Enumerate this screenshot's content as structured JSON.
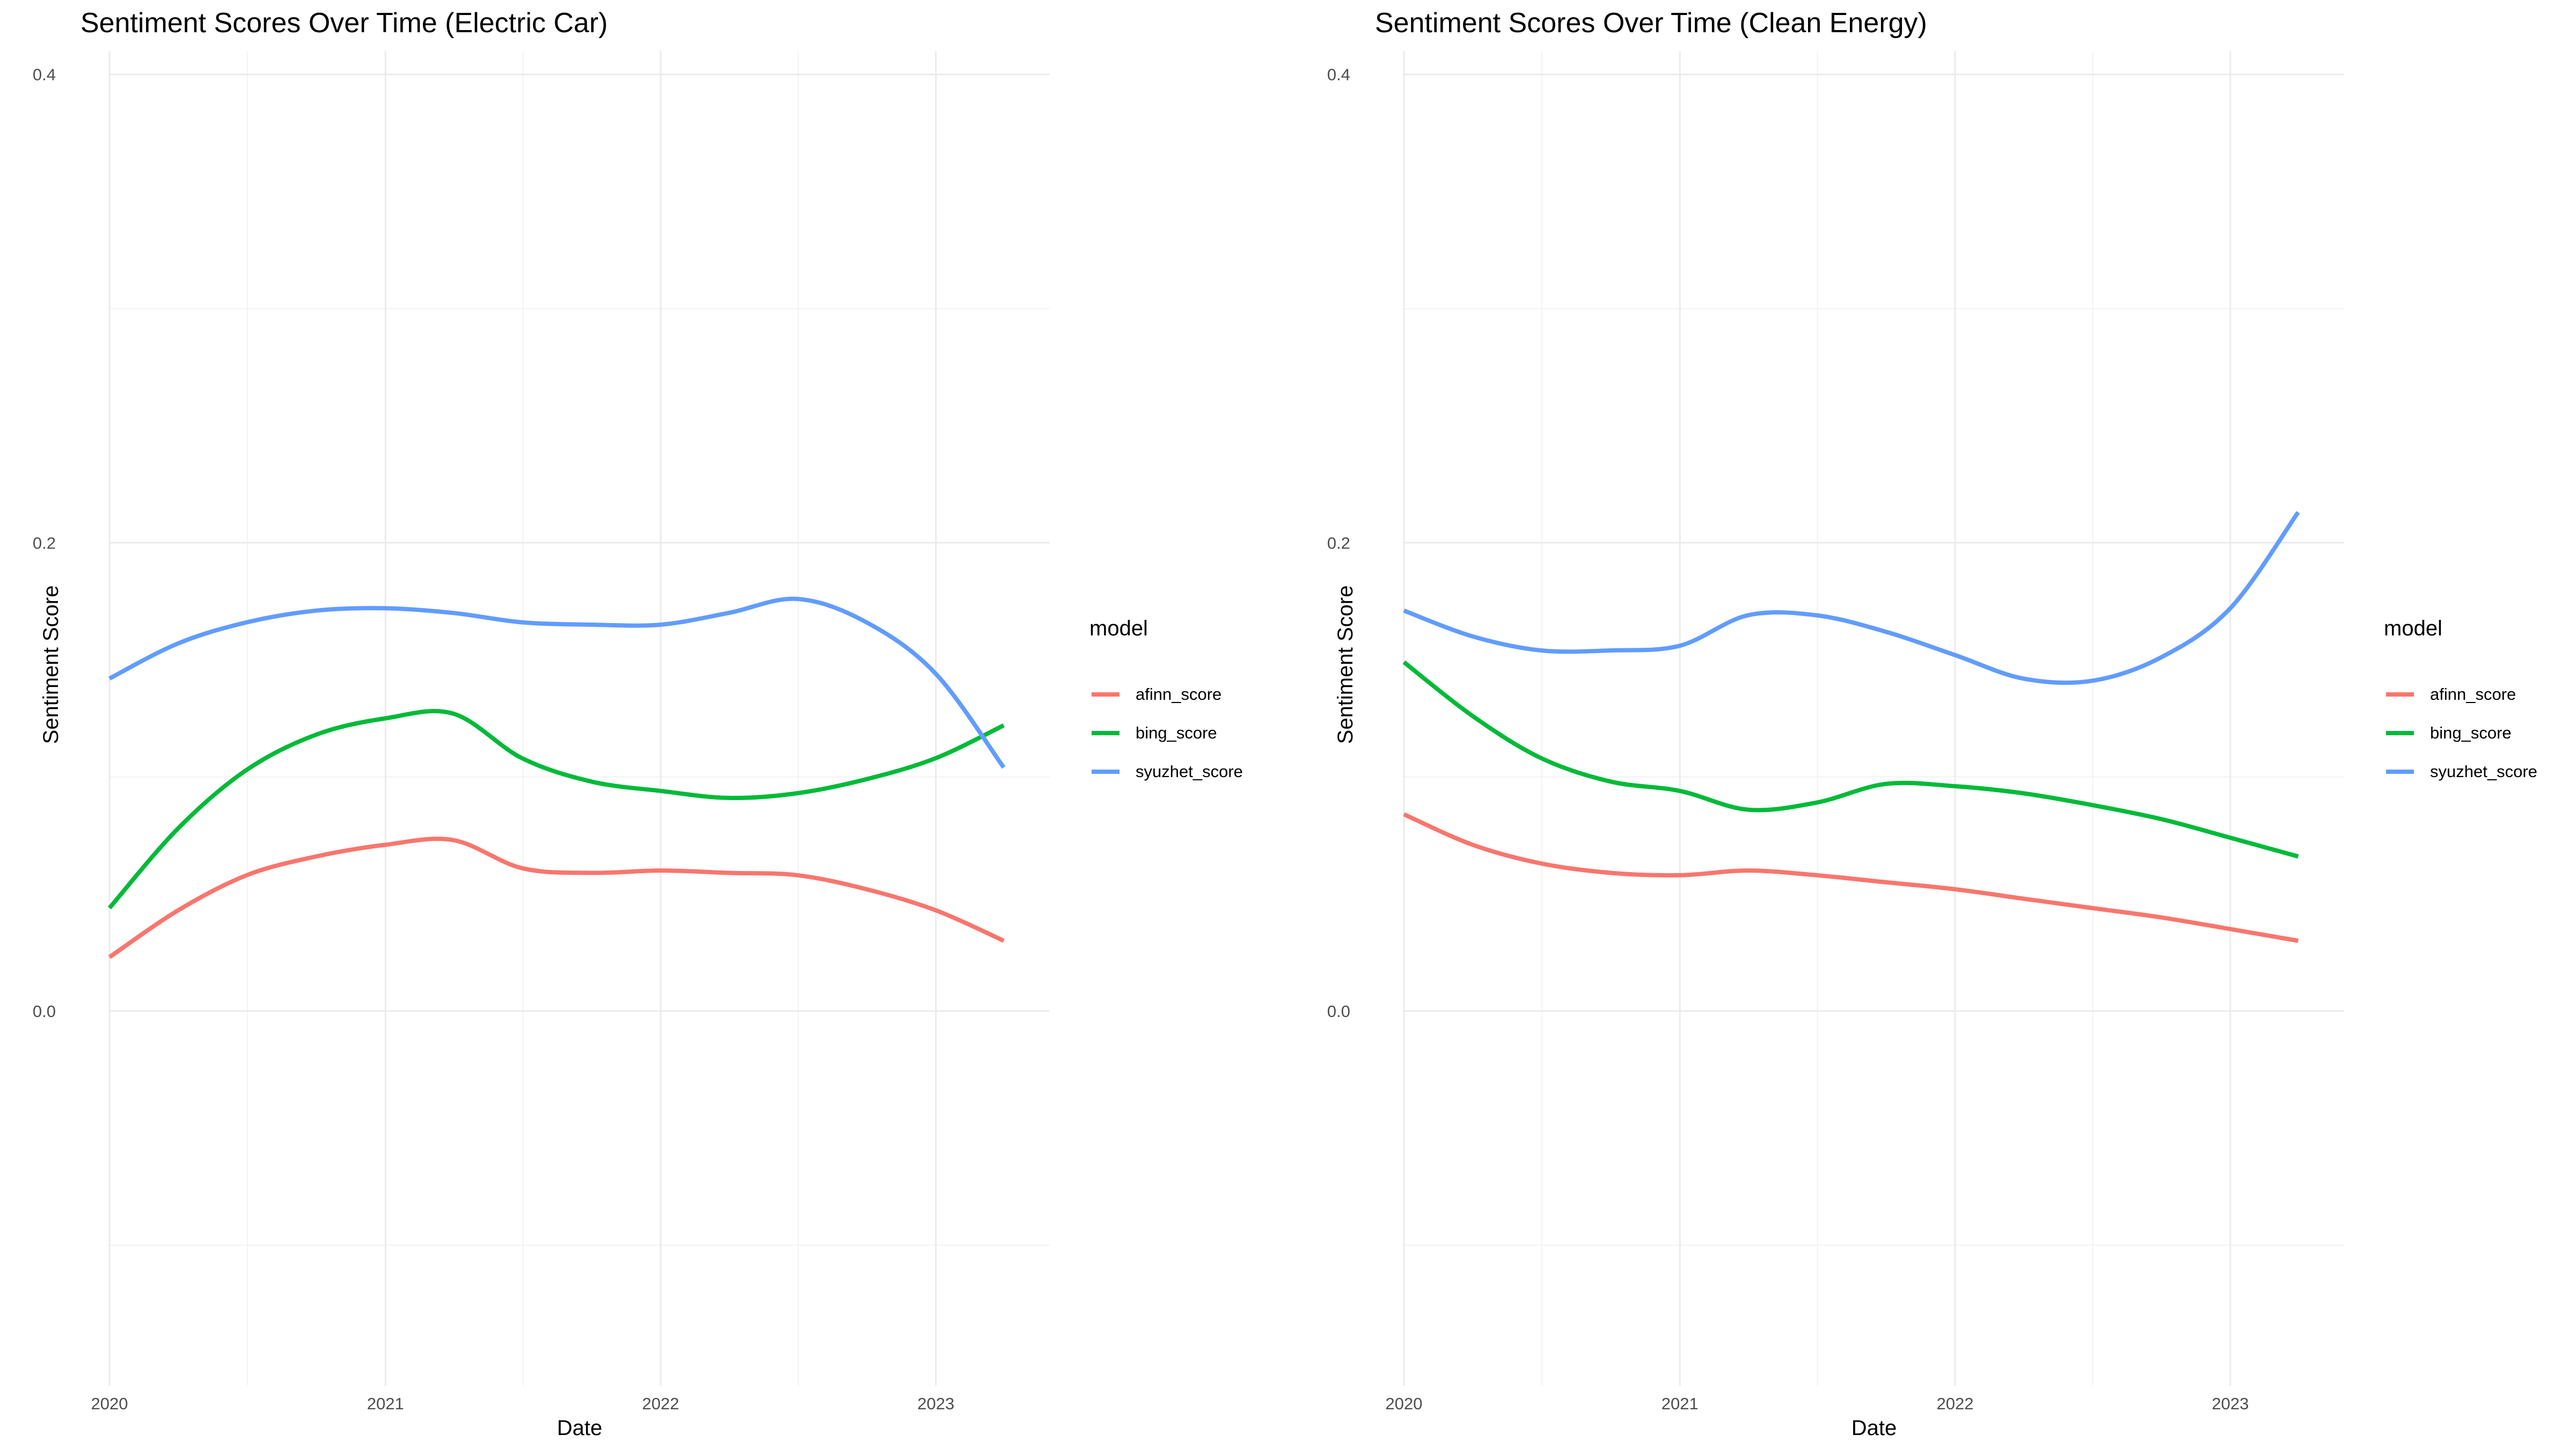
{
  "chart_data": [
    {
      "type": "line",
      "title": "Sentiment Scores Over Time (Electric Car)",
      "xlabel": "Date",
      "ylabel": "Sentiment Score",
      "x_type": "date",
      "xlim": [
        "2020-01-01",
        "2023-06-01"
      ],
      "ylim": [
        -0.16,
        0.41
      ],
      "x_ticks": [
        "2020-01-01",
        "2021-01-01",
        "2022-01-01",
        "2023-01-01"
      ],
      "x_tick_labels": [
        "2020",
        "2021",
        "2022",
        "2023"
      ],
      "y_ticks": [
        0.0,
        0.2,
        0.4
      ],
      "y_tick_labels": [
        "0.0",
        "0.2",
        "0.4"
      ],
      "legend_title": "model",
      "legend_position": "right",
      "grid": true,
      "x": [
        "2020-01-01",
        "2020-04-01",
        "2020-07-01",
        "2020-10-01",
        "2021-01-01",
        "2021-04-01",
        "2021-07-01",
        "2021-10-01",
        "2022-01-01",
        "2022-04-01",
        "2022-07-01",
        "2022-10-01",
        "2023-01-01",
        "2023-04-01"
      ],
      "series": [
        {
          "name": "afinn_score",
          "color": "#F8766D",
          "values": [
            0.023,
            0.043,
            0.058,
            0.066,
            0.071,
            0.073,
            0.061,
            0.059,
            0.06,
            0.059,
            0.058,
            0.052,
            0.043,
            0.03
          ]
        },
        {
          "name": "bing_score",
          "color": "#00BA38",
          "values": [
            0.044,
            0.078,
            0.103,
            0.118,
            0.125,
            0.127,
            0.108,
            0.098,
            0.094,
            0.091,
            0.093,
            0.099,
            0.108,
            0.122
          ]
        },
        {
          "name": "syuzhet_score",
          "color": "#619CFF",
          "values": [
            0.142,
            0.157,
            0.166,
            0.171,
            0.172,
            0.17,
            0.166,
            0.165,
            0.165,
            0.17,
            0.176,
            0.166,
            0.144,
            0.104
          ]
        }
      ]
    },
    {
      "type": "line",
      "title": "Sentiment Scores Over Time (Clean Energy)",
      "xlabel": "Date",
      "ylabel": "Sentiment Score",
      "x_type": "date",
      "xlim": [
        "2020-01-01",
        "2023-06-01"
      ],
      "ylim": [
        -0.16,
        0.41
      ],
      "x_ticks": [
        "2020-01-01",
        "2021-01-01",
        "2022-01-01",
        "2023-01-01"
      ],
      "x_tick_labels": [
        "2020",
        "2021",
        "2022",
        "2023"
      ],
      "y_ticks": [
        0.0,
        0.2,
        0.4
      ],
      "y_tick_labels": [
        "0.0",
        "0.2",
        "0.4"
      ],
      "legend_title": "model",
      "legend_position": "right",
      "grid": true,
      "x": [
        "2020-01-01",
        "2020-04-01",
        "2020-07-01",
        "2020-10-01",
        "2021-01-01",
        "2021-04-01",
        "2021-07-01",
        "2021-10-01",
        "2022-01-01",
        "2022-04-01",
        "2022-07-01",
        "2022-10-01",
        "2023-01-01",
        "2023-04-01"
      ],
      "series": [
        {
          "name": "afinn_score",
          "color": "#F8766D",
          "values": [
            0.084,
            0.071,
            0.063,
            0.059,
            0.058,
            0.06,
            0.058,
            0.055,
            0.052,
            0.048,
            0.044,
            0.04,
            0.035,
            0.03
          ]
        },
        {
          "name": "bing_score",
          "color": "#00BA38",
          "values": [
            0.149,
            0.126,
            0.108,
            0.098,
            0.094,
            0.086,
            0.089,
            0.097,
            0.096,
            0.093,
            0.088,
            0.082,
            0.074,
            0.066
          ]
        },
        {
          "name": "syuzhet_score",
          "color": "#619CFF",
          "values": [
            0.171,
            0.16,
            0.154,
            0.154,
            0.156,
            0.169,
            0.169,
            0.162,
            0.152,
            0.142,
            0.141,
            0.151,
            0.172,
            0.213
          ]
        }
      ]
    }
  ]
}
